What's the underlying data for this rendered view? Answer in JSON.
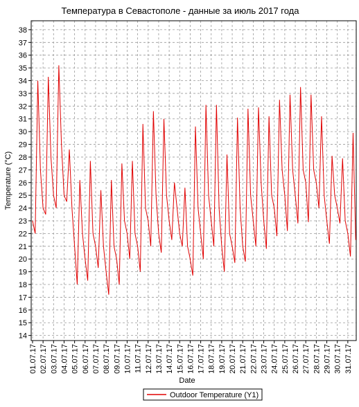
{
  "chart_data": {
    "type": "line",
    "title": "Температура в Севастополе - данные за июль 2017 года",
    "x_label": "Date",
    "y_label": "Temperature (°C)",
    "legend": "bottom",
    "grid": true,
    "xlim": [
      0.87,
      31.8
    ],
    "ylim": [
      13.6,
      38.7
    ],
    "yticks": [
      14,
      15,
      16,
      17,
      18,
      19,
      20,
      21,
      22,
      23,
      24,
      25,
      26,
      27,
      28,
      29,
      30,
      31,
      32,
      33,
      34,
      35,
      36,
      37,
      38
    ],
    "xticks": [
      {
        "value": 1,
        "label": "01.07.17"
      },
      {
        "value": 2,
        "label": "02.07.17"
      },
      {
        "value": 3,
        "label": "03.07.17"
      },
      {
        "value": 4,
        "label": "04.07.17"
      },
      {
        "value": 5,
        "label": "05.07.17"
      },
      {
        "value": 6,
        "label": "06.07.17"
      },
      {
        "value": 7,
        "label": "07.07.17"
      },
      {
        "value": 8,
        "label": "08.07.17"
      },
      {
        "value": 9,
        "label": "09.07.17"
      },
      {
        "value": 10,
        "label": "10.07.17"
      },
      {
        "value": 11,
        "label": "11.07.17"
      },
      {
        "value": 12,
        "label": "12.07.17"
      },
      {
        "value": 13,
        "label": "13.07.17"
      },
      {
        "value": 14,
        "label": "14.07.17"
      },
      {
        "value": 15,
        "label": "15.07.17"
      },
      {
        "value": 16,
        "label": "16.07.17"
      },
      {
        "value": 17,
        "label": "17.07.17"
      },
      {
        "value": 18,
        "label": "18.07.17"
      },
      {
        "value": 19,
        "label": "19.07.17"
      },
      {
        "value": 20,
        "label": "20.07.17"
      },
      {
        "value": 21,
        "label": "21.07.17"
      },
      {
        "value": 22,
        "label": "22.07.17"
      },
      {
        "value": 23,
        "label": "23.07.17"
      },
      {
        "value": 24,
        "label": "24.07.17"
      },
      {
        "value": 25,
        "label": "25.07.17"
      },
      {
        "value": 26,
        "label": "26.07.17"
      },
      {
        "value": 27,
        "label": "27.07.17"
      },
      {
        "value": 28,
        "label": "28.07.17"
      },
      {
        "value": 29,
        "label": "29.07.17"
      },
      {
        "value": 30,
        "label": "30.07.17"
      },
      {
        "value": 31,
        "label": "31.07.17"
      }
    ],
    "x": [
      1,
      1.25,
      1.5,
      1.75,
      2,
      2.25,
      2.5,
      2.75,
      3,
      3.25,
      3.5,
      3.75,
      4,
      4.25,
      4.5,
      4.75,
      5,
      5.25,
      5.5,
      5.75,
      6,
      6.25,
      6.5,
      6.75,
      7,
      7.25,
      7.5,
      7.75,
      8,
      8.25,
      8.5,
      8.75,
      9,
      9.25,
      9.5,
      9.75,
      10,
      10.25,
      10.5,
      10.75,
      11,
      11.25,
      11.5,
      11.75,
      12,
      12.25,
      12.5,
      12.75,
      13,
      13.25,
      13.5,
      13.75,
      14,
      14.25,
      14.5,
      14.75,
      15,
      15.25,
      15.5,
      15.75,
      16,
      16.25,
      16.5,
      16.75,
      17,
      17.25,
      17.5,
      17.75,
      18,
      18.25,
      18.5,
      18.75,
      19,
      19.25,
      19.5,
      19.75,
      20,
      20.25,
      20.5,
      20.75,
      21,
      21.25,
      21.5,
      21.75,
      22,
      22.25,
      22.5,
      22.75,
      23,
      23.25,
      23.5,
      23.75,
      24,
      24.25,
      24.5,
      24.75,
      25,
      25.25,
      25.5,
      25.75,
      26,
      26.25,
      26.5,
      26.75,
      27,
      27.25,
      27.5,
      27.75,
      28,
      28.25,
      28.5,
      28.75,
      29,
      29.25,
      29.5,
      29.75,
      30,
      30.25,
      30.5,
      30.75,
      31,
      31.25,
      31.5,
      31.75
    ],
    "series": [
      {
        "name": "Outdoor Temperature (Y1)",
        "color": "#e00000",
        "values": [
          23,
          22,
          34,
          27,
          24,
          23.5,
          34.3,
          28,
          25,
          24,
          35.2,
          29,
          25,
          24.5,
          28.6,
          24,
          21,
          18,
          26.2,
          22,
          20,
          18.3,
          27.7,
          22,
          21,
          19.3,
          25.4,
          21,
          19,
          17.2,
          26.2,
          21,
          20,
          18,
          27.5,
          23,
          22,
          20,
          27.7,
          22,
          21,
          19,
          30.6,
          24,
          23,
          21,
          31.6,
          25,
          22,
          20.5,
          31,
          25,
          23,
          21.5,
          26,
          24,
          22,
          21,
          25.6,
          21,
          20,
          18.7,
          30.4,
          24,
          22,
          20,
          32.1,
          25,
          23,
          21,
          32.1,
          24,
          21,
          19,
          28.2,
          22,
          21,
          19.7,
          31.1,
          24,
          21,
          19.8,
          31.8,
          25,
          23,
          21,
          31.9,
          26,
          23,
          20.8,
          31.2,
          25,
          24,
          21.8,
          32.5,
          27,
          25,
          22.2,
          32.9,
          27,
          25,
          22.8,
          33.5,
          27,
          26,
          22.9,
          32.9,
          27,
          26,
          24,
          31.2,
          25,
          23,
          21.2,
          28.1,
          25,
          24,
          22.8,
          27.9,
          23,
          22,
          20.2,
          29.9,
          21.5
        ]
      }
    ]
  }
}
